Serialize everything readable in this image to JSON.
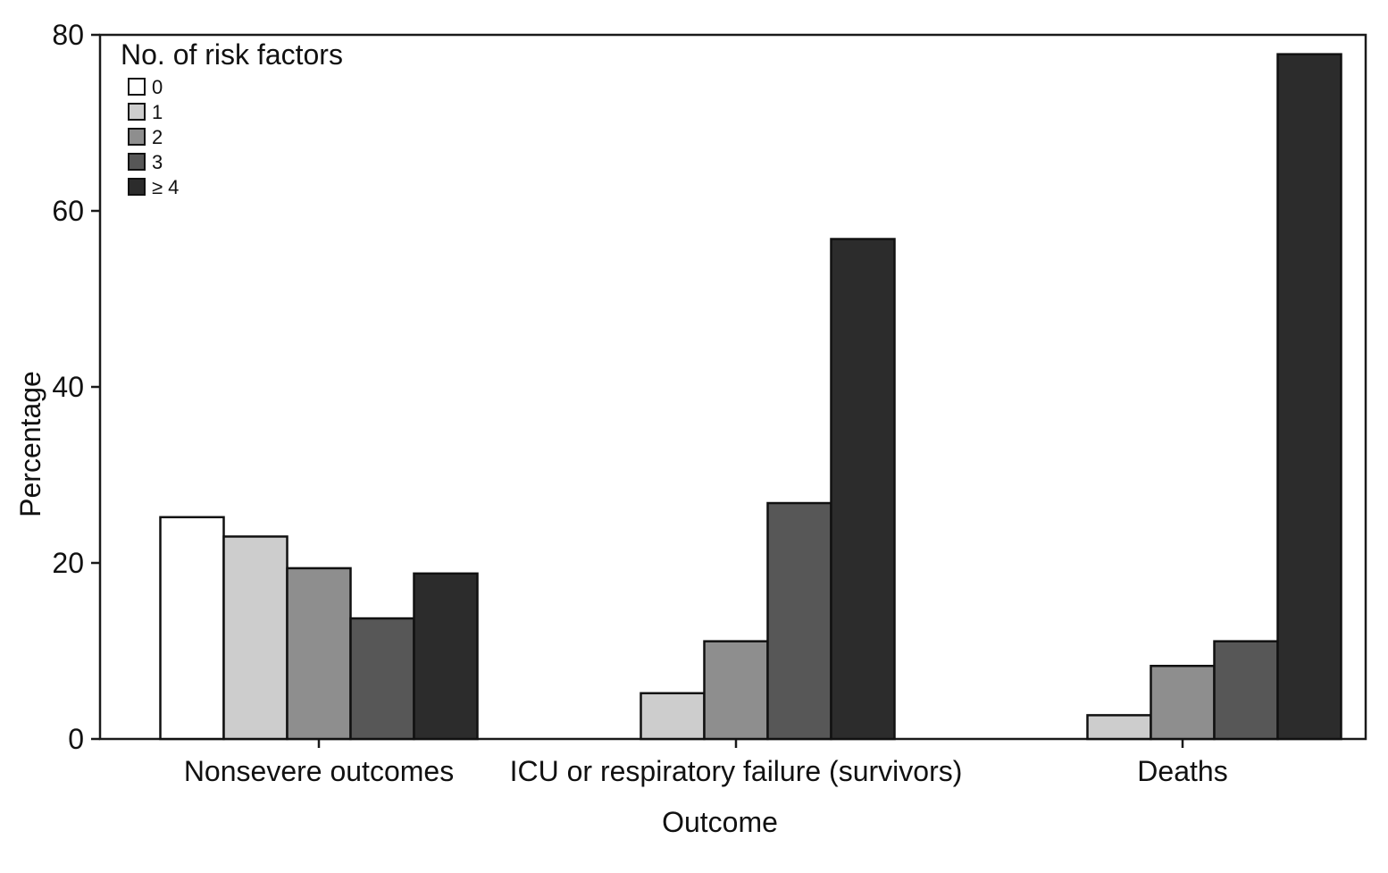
{
  "chart_data": {
    "type": "bar",
    "xlabel": "Outcome",
    "ylabel": "Percentage",
    "ylim": [
      0,
      80
    ],
    "yticks": [
      0,
      20,
      40,
      60,
      80
    ],
    "grid": false,
    "categories": [
      "Nonsevere outcomes",
      "ICU or respiratory failure (survivors)",
      "Deaths"
    ],
    "legend": {
      "title": "No. of risk factors",
      "placement": "top-left"
    },
    "series": [
      {
        "name": "0",
        "color": "#ffffff",
        "values": [
          25.2,
          0,
          0
        ]
      },
      {
        "name": "1",
        "color": "#cdcdcd",
        "values": [
          23.0,
          5.2,
          2.7
        ]
      },
      {
        "name": "2",
        "color": "#8e8e8e",
        "values": [
          19.4,
          11.1,
          8.3
        ]
      },
      {
        "name": "3",
        "color": "#575757",
        "values": [
          13.7,
          26.8,
          11.1
        ]
      },
      {
        "name": "≥ 4",
        "color": "#2c2c2c",
        "values": [
          18.8,
          56.8,
          77.8
        ]
      }
    ]
  }
}
